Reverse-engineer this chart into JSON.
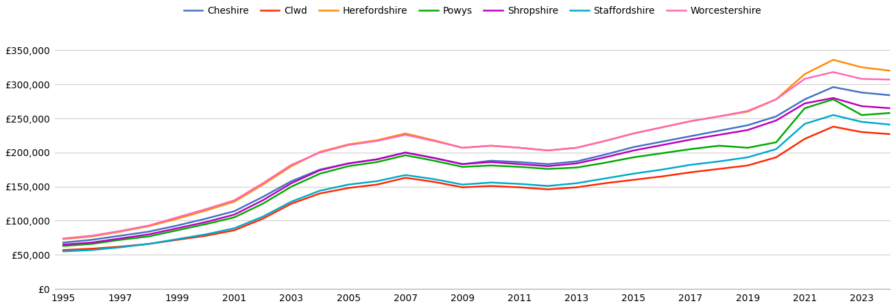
{
  "title": "",
  "years": [
    1995,
    1996,
    1997,
    1998,
    1999,
    2000,
    2001,
    2002,
    2003,
    2004,
    2005,
    2006,
    2007,
    2008,
    2009,
    2010,
    2011,
    2012,
    2013,
    2014,
    2015,
    2016,
    2017,
    2018,
    2019,
    2020,
    2021,
    2022,
    2023,
    2024
  ],
  "series": {
    "Cheshire": [
      68000,
      72000,
      78000,
      84000,
      93000,
      103000,
      114000,
      135000,
      158000,
      175000,
      184000,
      190000,
      200000,
      192000,
      183000,
      188000,
      186000,
      183000,
      187000,
      197000,
      208000,
      216000,
      224000,
      232000,
      240000,
      253000,
      278000,
      296000,
      288000,
      284000
    ],
    "Clwd": [
      57000,
      59000,
      62000,
      66000,
      72000,
      78000,
      86000,
      103000,
      125000,
      140000,
      148000,
      153000,
      163000,
      157000,
      149000,
      151000,
      149000,
      146000,
      149000,
      155000,
      160000,
      165000,
      171000,
      176000,
      181000,
      193000,
      220000,
      238000,
      230000,
      227000
    ],
    "Herefordshire": [
      73000,
      77000,
      84000,
      92000,
      103000,
      115000,
      128000,
      153000,
      180000,
      201000,
      212000,
      218000,
      228000,
      218000,
      207000,
      210000,
      207000,
      203000,
      207000,
      217000,
      228000,
      237000,
      246000,
      253000,
      260000,
      278000,
      315000,
      336000,
      325000,
      320000
    ],
    "Powys": [
      63000,
      66000,
      72000,
      77000,
      86000,
      95000,
      105000,
      125000,
      150000,
      169000,
      180000,
      186000,
      196000,
      188000,
      179000,
      181000,
      179000,
      176000,
      178000,
      185000,
      193000,
      199000,
      205000,
      210000,
      207000,
      215000,
      265000,
      278000,
      255000,
      258000
    ],
    "Shropshire": [
      65000,
      68000,
      74000,
      80000,
      89000,
      98000,
      109000,
      130000,
      155000,
      174000,
      184000,
      190000,
      200000,
      192000,
      183000,
      186000,
      183000,
      180000,
      184000,
      193000,
      203000,
      211000,
      219000,
      226000,
      233000,
      247000,
      272000,
      280000,
      268000,
      265000
    ],
    "Staffordshire": [
      55000,
      57000,
      61000,
      66000,
      73000,
      80000,
      89000,
      106000,
      128000,
      144000,
      153000,
      158000,
      167000,
      161000,
      153000,
      156000,
      154000,
      151000,
      155000,
      162000,
      169000,
      175000,
      182000,
      187000,
      193000,
      205000,
      242000,
      255000,
      245000,
      241000
    ],
    "Worcestershire": [
      74000,
      78000,
      85000,
      93000,
      105000,
      117000,
      130000,
      155000,
      182000,
      200000,
      211000,
      217000,
      226000,
      217000,
      207000,
      210000,
      207000,
      203000,
      207000,
      217000,
      228000,
      237000,
      246000,
      253000,
      261000,
      278000,
      308000,
      318000,
      308000,
      307000
    ]
  },
  "colors": {
    "Cheshire": "#4472C4",
    "Clwd": "#FF2800",
    "Herefordshire": "#FF8C00",
    "Powys": "#00AA00",
    "Shropshire": "#BB00BB",
    "Staffordshire": "#00AACC",
    "Worcestershire": "#FF69B4"
  },
  "ylim": [
    0,
    375000
  ],
  "yticks": [
    0,
    50000,
    100000,
    150000,
    200000,
    250000,
    300000,
    350000
  ],
  "background_color": "#ffffff",
  "grid_color": "#d0d0d0"
}
